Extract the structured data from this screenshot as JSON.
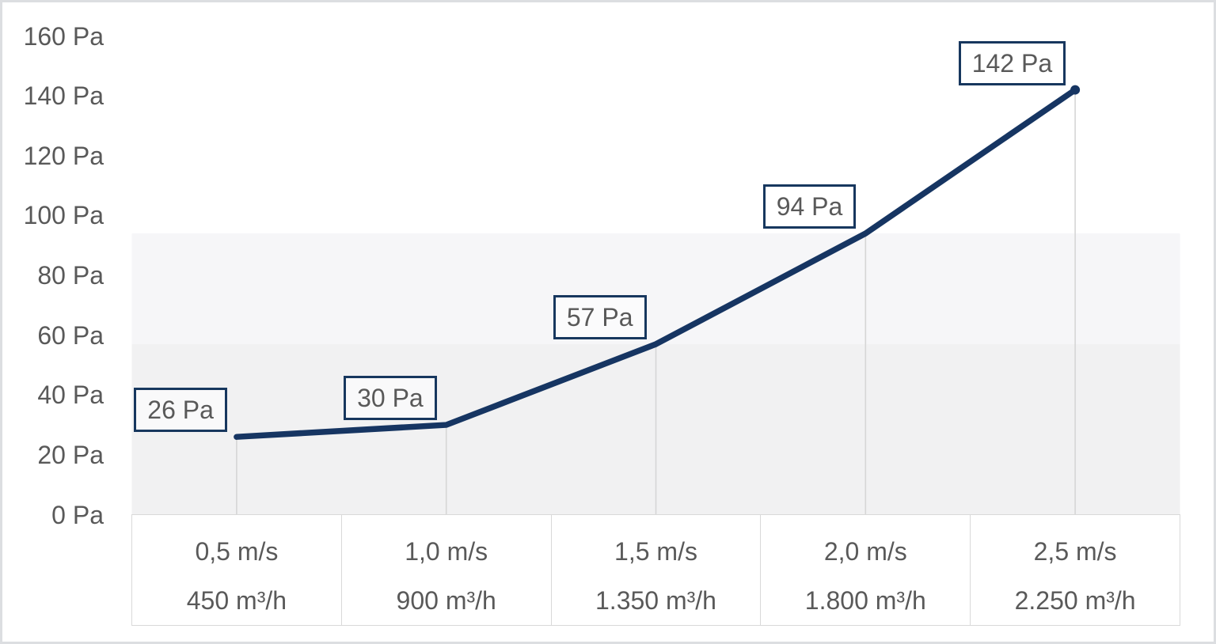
{
  "chart_data": {
    "type": "line",
    "title": "",
    "legend": "none",
    "grid": "off",
    "series": [
      {
        "name": "pressure-drop-curve",
        "points": [
          {
            "velocity": "0,5 m/s",
            "flow": "450 m³/h",
            "pressure_pa": 26,
            "label": "26 Pa"
          },
          {
            "velocity": "1,0 m/s",
            "flow": "900 m³/h",
            "pressure_pa": 30,
            "label": "30 Pa"
          },
          {
            "velocity": "1,5 m/s",
            "flow": "1.350 m³/h",
            "pressure_pa": 57,
            "label": "57 Pa"
          },
          {
            "velocity": "2,0 m/s",
            "flow": "1.800 m³/h",
            "pressure_pa": 94,
            "label": "94 Pa"
          },
          {
            "velocity": "2,5 m/s",
            "flow": "2.250 m³/h",
            "pressure_pa": 142,
            "label": "142 Pa"
          }
        ]
      }
    ],
    "y_axis": {
      "unit": "Pa",
      "min": 0,
      "max": 160,
      "step": 20,
      "tick_labels": [
        "0 Pa",
        "20 Pa",
        "40 Pa",
        "60 Pa",
        "80 Pa",
        "100 Pa",
        "120 Pa",
        "140 Pa",
        "160 Pa"
      ]
    },
    "x_axis": {
      "row1_unit": "m/s",
      "row2_unit": "m³/h",
      "categories_row1": [
        "0,5 m/s",
        "1,0 m/s",
        "1,5 m/s",
        "2,0 m/s",
        "2,5 m/s"
      ],
      "categories_row2": [
        "450 m³/h",
        "900 m³/h",
        "1.350 m³/h",
        "1.800 m³/h",
        "2.250 m³/h"
      ]
    },
    "background_bands": [
      {
        "from_pa": 57,
        "to_pa": 94,
        "color": "#f6f6f8"
      },
      {
        "from_pa": 0,
        "to_pa": 57,
        "color": "#f1f1f2"
      }
    ],
    "colors": {
      "line": "#163562",
      "label_box_border": "#17375e",
      "text": "#595959",
      "dropline": "#d6d6d6",
      "table_border": "#d9d9d9",
      "outer_border": "#dcdee1"
    }
  }
}
